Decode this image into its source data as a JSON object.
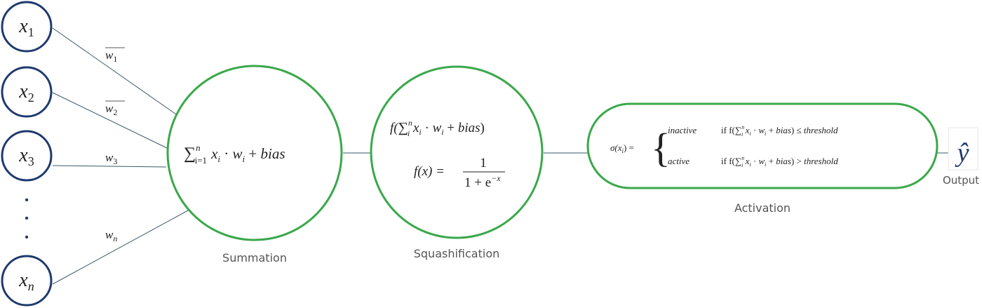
{
  "colors": {
    "input_stroke": "#1f3a6e",
    "node_stroke": "#3aa84a",
    "edge": "#3a5a6a",
    "math_text": "#222222",
    "caption_text": "#555555"
  },
  "inputs": [
    {
      "var": "x",
      "sub": "1"
    },
    {
      "var": "x",
      "sub": "2"
    },
    {
      "var": "x",
      "sub": "3"
    },
    {
      "var": "x",
      "sub": "n"
    }
  ],
  "weights": [
    {
      "var": "w",
      "sub": "1"
    },
    {
      "var": "w",
      "sub": "2"
    },
    {
      "var": "w",
      "sub": "3"
    },
    {
      "var": "w",
      "sub": "n"
    }
  ],
  "summation": {
    "caption": "Summation",
    "formula": {
      "sigma": "∑",
      "sup": "n",
      "sub": "i=1",
      "body_x": "x",
      "body_i1": "i",
      "dot": " · ",
      "body_w": "w",
      "body_i2": "i",
      "plus": " + ",
      "bias": "bias"
    }
  },
  "squash": {
    "caption": "Squashification",
    "line1": {
      "f": "f(",
      "sigma": "∑",
      "sup": "n",
      "sub": "i",
      "x": " x",
      "xi": "i",
      "dot": " · ",
      "w": "w",
      "wi": "i",
      "plus": " + ",
      "bias": "bias",
      "close": ")"
    },
    "line2": {
      "lhs": "f(x) =",
      "numerator": "1",
      "denominator_base": "1 + e",
      "denominator_exp": "−x"
    }
  },
  "activation": {
    "caption": "Activation",
    "lhs": "σ(x",
    "lhs_sub": "i",
    "lhs_end": ") =",
    "cases": [
      {
        "state": "inactive",
        "cond_if": "if f(",
        "sigma": "∑",
        "sup": "n",
        "sub": "i",
        "x": " x",
        "xi": "i",
        "dot": " · ",
        "w": "w",
        "wi": "i",
        "plus": " + ",
        "bias": "bias",
        "close": ")",
        "rel": " ≤ ",
        "threshold": "threshold"
      },
      {
        "state": "active",
        "cond_if": "if f(",
        "sigma": "∑",
        "sup": "n",
        "sub": "i",
        "x": " x",
        "xi": "i",
        "dot": " · ",
        "w": "w",
        "wi": "i",
        "plus": " + ",
        "bias": "bias",
        "close": ")",
        "rel": " > ",
        "threshold": "threshold"
      }
    ]
  },
  "output": {
    "symbol": "ŷ",
    "caption": "Output"
  },
  "ellipsis_dots": [
    "•",
    "•",
    "•"
  ]
}
